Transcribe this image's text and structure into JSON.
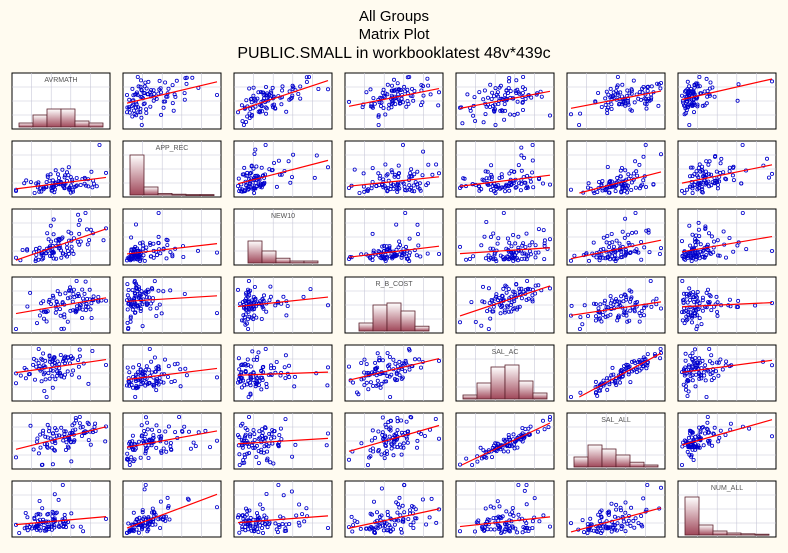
{
  "title": {
    "line1": "All Groups",
    "line2": "Matrix Plot",
    "line3": "PUBLIC.SMALL in workbooklatest 48v*439c"
  },
  "colors": {
    "background": "#fffbf0",
    "points": "#0000cc",
    "fit_line": "#ff0000",
    "hist_top": "#ffffff",
    "hist_bottom": "#a0485a",
    "grid": "#c8c8d8"
  },
  "chart_data": {
    "type": "scatter",
    "subtype": "scatterplot-matrix",
    "variables": [
      "AVRMATH",
      "APP_REC",
      "NEW10",
      "R_B_COST",
      "SAL_AC",
      "SAL_ALL",
      "NUM_ALL"
    ],
    "diagonal": "histogram",
    "off_diagonal": "scatter with linear fit",
    "grid": true,
    "histograms": {
      "AVRMATH": [
        0.1,
        0.3,
        0.45,
        0.45,
        0.15,
        0.1
      ],
      "APP_REC": [
        1.0,
        0.2,
        0.04,
        0.02,
        0.01,
        0.01
      ],
      "NEW10": [
        0.55,
        0.3,
        0.12,
        0.05,
        0.05
      ],
      "R_B_COST": [
        0.2,
        0.65,
        0.7,
        0.5,
        0.12
      ],
      "SAL_AC": [
        0.1,
        0.4,
        0.8,
        0.85,
        0.45,
        0.15
      ],
      "SAL_ALL": [
        0.25,
        0.55,
        0.45,
        0.3,
        0.12,
        0.05
      ],
      "NUM_ALL": [
        0.95,
        0.25,
        0.1,
        0.05,
        0.03,
        0.02
      ]
    },
    "approx_correlations": [
      [
        1.0,
        0.4,
        0.6,
        0.3,
        0.35,
        0.4,
        0.35
      ],
      [
        0.4,
        1.0,
        0.35,
        0.3,
        0.35,
        0.45,
        0.6
      ],
      [
        0.6,
        0.35,
        1.0,
        0.2,
        0.2,
        0.25,
        0.2
      ],
      [
        0.3,
        0.3,
        0.2,
        1.0,
        0.45,
        0.45,
        0.3
      ],
      [
        0.35,
        0.35,
        0.2,
        0.45,
        1.0,
        0.9,
        0.35
      ],
      [
        0.4,
        0.45,
        0.25,
        0.45,
        0.9,
        1.0,
        0.45
      ],
      [
        0.35,
        0.6,
        0.2,
        0.3,
        0.35,
        0.45,
        1.0
      ]
    ],
    "n_points": 90
  }
}
